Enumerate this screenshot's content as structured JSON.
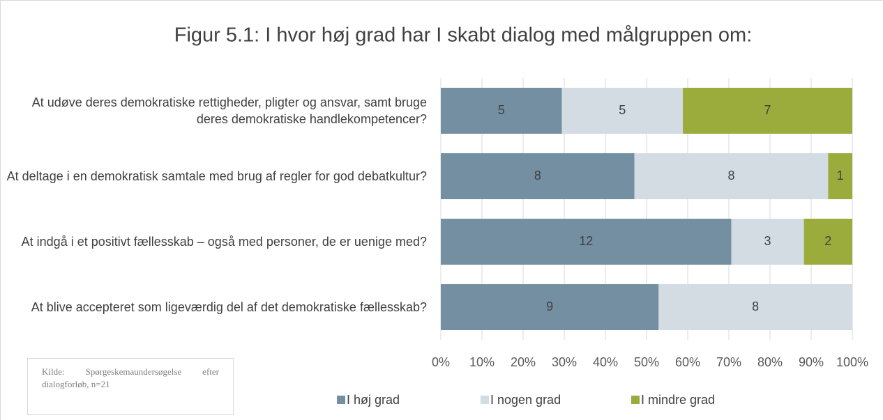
{
  "chart_data": {
    "type": "bar",
    "orientation": "horizontal",
    "stack": "percent",
    "title": "Figur 5.1: I hvor høj grad har I skabt dialog med målgruppen om:",
    "categories": [
      "At udøve deres demokratiske rettigheder, pligter og ansvar, samt bruge deres demokratiske handlekompetencer?",
      "At deltage i en demokratisk samtale med brug af regler for god debatkultur?",
      "At indgå i et positivt fællesskab – også med personer, de er uenige med?",
      "At blive accepteret som ligeværdig del af det demokratiske fællesskab?"
    ],
    "series": [
      {
        "name": "I høj grad",
        "color": "#758fa2",
        "values": [
          5,
          8,
          12,
          9
        ]
      },
      {
        "name": "I nogen grad",
        "color": "#d3dce3",
        "values": [
          5,
          8,
          3,
          8
        ]
      },
      {
        "name": "I mindre grad",
        "color": "#9bab3c",
        "values": [
          7,
          1,
          2,
          0
        ]
      }
    ],
    "xlim": [
      0,
      100
    ],
    "xticks": [
      {
        "value": 0,
        "label": "0%"
      },
      {
        "value": 10,
        "label": "10%"
      },
      {
        "value": 20,
        "label": "20%"
      },
      {
        "value": 30,
        "label": "30%"
      },
      {
        "value": 40,
        "label": "40%"
      },
      {
        "value": 50,
        "label": "50%"
      },
      {
        "value": 60,
        "label": "60%"
      },
      {
        "value": 70,
        "label": "70%"
      },
      {
        "value": 80,
        "label": "80%"
      },
      {
        "value": 90,
        "label": "90%"
      },
      {
        "value": 100,
        "label": "100%"
      }
    ],
    "grid": true,
    "legend": "bottom",
    "source": "Kilde: Spørgeskemaundersøgelse efter dialogforløb, n=21"
  }
}
